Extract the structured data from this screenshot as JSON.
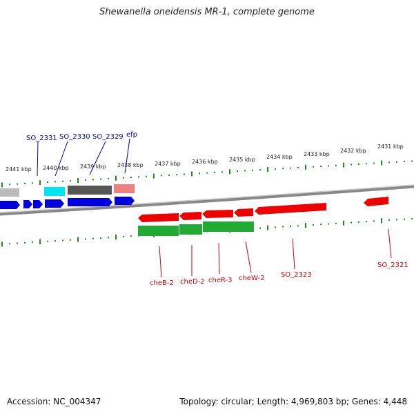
{
  "title": "Shewanella oneidensis MR-1, complete genome",
  "footer": {
    "accession": "Accession: NC_004347",
    "summary": "Topology: circular; Length: 4,969,803 bp; Genes: 4,448"
  },
  "colors": {
    "reverse_gene": "#ee0000",
    "forward_gene": "#0000dd",
    "rna_like": "#22aa33",
    "cyan_gene": "#00e5ee",
    "dark_gene": "#555555",
    "pink_gene": "#f08080",
    "gray_gene": "#bbbbbb",
    "tick": "#228822",
    "label_blue": "#0000aa",
    "label_red": "#cc0000",
    "backbone": "#888888"
  },
  "scale": {
    "ticks_kbp": [
      "2441 kbp",
      "2440 kbp",
      "2439 kbp",
      "2438 kbp",
      "2437 kbp",
      "2436 kbp",
      "2435 kbp",
      "2434 kbp",
      "2433 kbp",
      "2432 kbp",
      "2431 kbp"
    ]
  },
  "gene_labels": {
    "top": [
      "SO_2331",
      "SO_2330",
      "SO_2329",
      "efp"
    ],
    "bottom": [
      "cheB-2",
      "cheD-2",
      "cheR-3",
      "cheW-2",
      "SO_2323",
      "SO_2321"
    ]
  }
}
